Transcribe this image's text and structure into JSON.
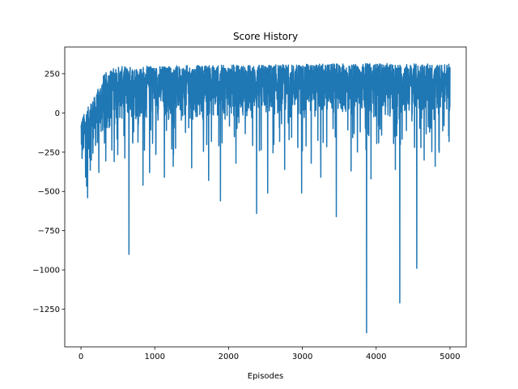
{
  "chart_data": {
    "type": "line",
    "title": "Score History",
    "xlabel": "Episodes",
    "ylabel": "",
    "xlim": [
      -220,
      5220
    ],
    "ylim": [
      -1490,
      420
    ],
    "xticks": [
      0,
      1000,
      2000,
      3000,
      4000,
      5000
    ],
    "yticks": [
      -1250,
      -1000,
      -750,
      -500,
      -250,
      0,
      250
    ],
    "grid": false,
    "series_color": "#1f77b4",
    "series": [
      {
        "episodes": 5000,
        "band": [
          {
            "x": 0,
            "lo": -300,
            "hi": -30
          },
          {
            "x": 50,
            "lo": -360,
            "hi": 0
          },
          {
            "x": 100,
            "lo": -330,
            "hi": 40
          },
          {
            "x": 150,
            "lo": -290,
            "hi": 90
          },
          {
            "x": 200,
            "lo": -260,
            "hi": 110
          },
          {
            "x": 250,
            "lo": -230,
            "hi": 180
          },
          {
            "x": 300,
            "lo": -180,
            "hi": 240
          },
          {
            "x": 400,
            "lo": -120,
            "hi": 285
          },
          {
            "x": 500,
            "lo": -80,
            "hi": 295
          },
          {
            "x": 1000,
            "lo": -60,
            "hi": 300
          },
          {
            "x": 2000,
            "lo": -50,
            "hi": 305
          },
          {
            "x": 3000,
            "lo": -40,
            "hi": 310
          },
          {
            "x": 4000,
            "lo": -40,
            "hi": 315
          },
          {
            "x": 5000,
            "lo": -30,
            "hi": 310
          }
        ],
        "spikes": [
          {
            "x": 15,
            "y": -290
          },
          {
            "x": 90,
            "y": -540
          },
          {
            "x": 140,
            "y": -300
          },
          {
            "x": 450,
            "y": -310
          },
          {
            "x": 650,
            "y": -900
          },
          {
            "x": 840,
            "y": -460
          },
          {
            "x": 930,
            "y": -380
          },
          {
            "x": 1130,
            "y": -410
          },
          {
            "x": 1250,
            "y": -340
          },
          {
            "x": 1500,
            "y": -350
          },
          {
            "x": 1730,
            "y": -430
          },
          {
            "x": 1890,
            "y": -560
          },
          {
            "x": 2100,
            "y": -320
          },
          {
            "x": 2380,
            "y": -640
          },
          {
            "x": 2530,
            "y": -510
          },
          {
            "x": 2760,
            "y": -360
          },
          {
            "x": 2990,
            "y": -510
          },
          {
            "x": 3120,
            "y": -320
          },
          {
            "x": 3250,
            "y": -410
          },
          {
            "x": 3460,
            "y": -660
          },
          {
            "x": 3660,
            "y": -370
          },
          {
            "x": 3870,
            "y": -1400
          },
          {
            "x": 3930,
            "y": -420
          },
          {
            "x": 4260,
            "y": -360
          },
          {
            "x": 4320,
            "y": -1210
          },
          {
            "x": 4550,
            "y": -990
          },
          {
            "x": 4650,
            "y": -300
          },
          {
            "x": 4800,
            "y": -340
          }
        ]
      }
    ]
  }
}
